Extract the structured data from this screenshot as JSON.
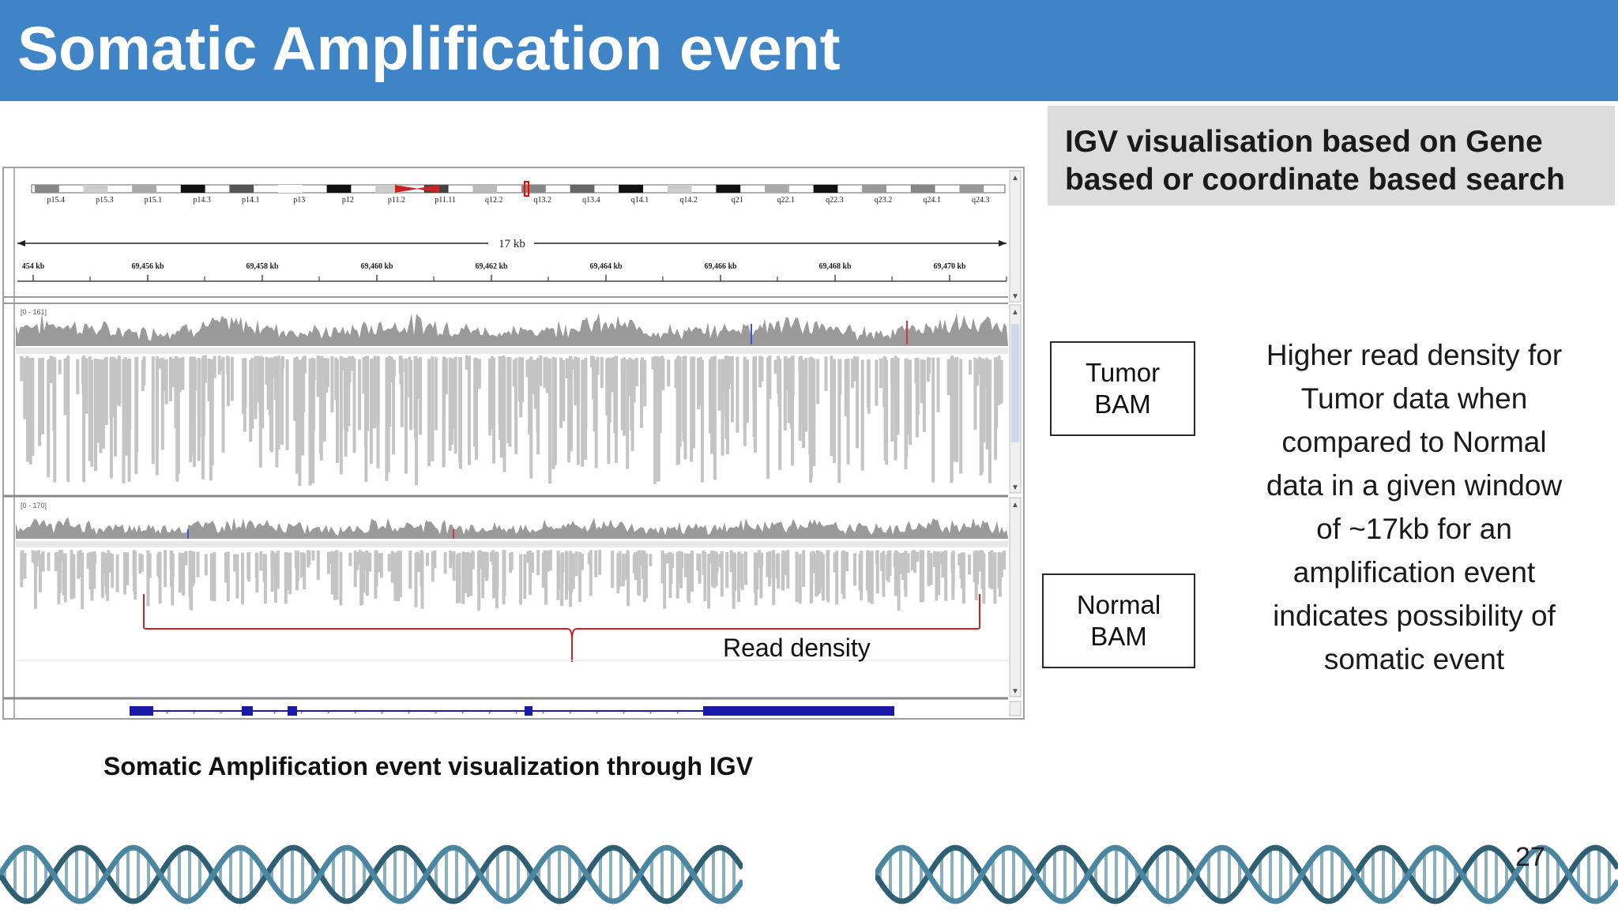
{
  "header": {
    "title": "Somatic Amplification event"
  },
  "info_box": {
    "line1": "IGV visualisation based on Gene",
    "line2": "based or coordinate based search"
  },
  "tracks": {
    "tumor_label_line1": "Tumor",
    "tumor_label_line2": "BAM",
    "normal_label_line1": "Normal",
    "normal_label_line2": "BAM"
  },
  "description": {
    "lines": [
      "Higher read density for",
      "Tumor data when",
      "compared to Normal",
      "data in a given window",
      "of ~17kb for an",
      "amplification event",
      "indicates possibility of",
      "somatic event"
    ]
  },
  "igv": {
    "cytobands": [
      "p15.4",
      "p15.3",
      "p15.1",
      "p14.3",
      "p14.1",
      "p13",
      "p12",
      "p11.2",
      "p11.11",
      "q12.2",
      "q13.2",
      "q13.4",
      "q14.1",
      "q14.2",
      "q21",
      "q22.1",
      "q22.3",
      "q23.2",
      "q24.1",
      "q24.3"
    ],
    "scale_label": "17 kb",
    "ruler_ticks": [
      "454 kb",
      "69,456 kb",
      "69,458 kb",
      "69,460 kb",
      "69,462 kb",
      "69,464 kb",
      "69,466 kb",
      "69,468 kb",
      "69,470 kb"
    ],
    "tumor_range": "[0 - 161]",
    "normal_range": "[0 - 170]",
    "annotation": "Read density"
  },
  "caption": "Somatic Amplification event visualization through IGV",
  "page_number": "27",
  "colors": {
    "title_bar": "#3f84c6",
    "brace": "#cc2222",
    "coverage": "#9a9a9a",
    "reads": "#c4c4c4",
    "gene": "#1a1aa8"
  }
}
